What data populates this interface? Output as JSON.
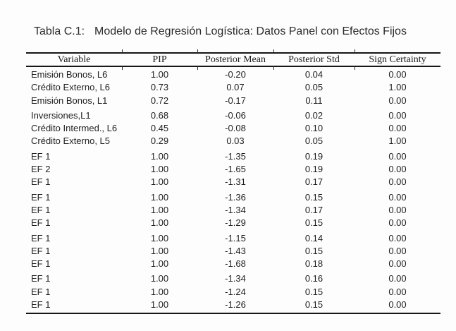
{
  "caption": {
    "label": "Tabla C.1:",
    "text": "Modelo de Regresión Logística: Datos Panel con Efectos Fijos"
  },
  "table": {
    "columns": [
      "Variable",
      "PIP",
      "Posterior Mean",
      "Posterior Std",
      "Sign Certainty"
    ],
    "group_size": 3,
    "rows": [
      [
        "Emisión Bonos, L6",
        "1.00",
        "-0.20",
        "0.04",
        "0.00"
      ],
      [
        "Crédito Externo, L6",
        "0.73",
        "0.07",
        "0.05",
        "1.00"
      ],
      [
        "Emisión Bonos, L1",
        "0.72",
        "-0.17",
        "0.11",
        "0.00"
      ],
      [
        "Inversiones,L1",
        "0.68",
        "-0.06",
        "0.02",
        "0.00"
      ],
      [
        "Crédito Intermed., L6",
        "0.45",
        "-0.08",
        "0.10",
        "0.00"
      ],
      [
        "Crédito Externo, L5",
        "0.29",
        "0.03",
        "0.05",
        "1.00"
      ],
      [
        "EF 1",
        "1.00",
        "-1.35",
        "0.19",
        "0.00"
      ],
      [
        "EF 2",
        "1.00",
        "-1.65",
        "0.19",
        "0.00"
      ],
      [
        "EF 1",
        "1.00",
        "-1.31",
        "0.17",
        "0.00"
      ],
      [
        "EF 1",
        "1.00",
        "-1.36",
        "0.15",
        "0.00"
      ],
      [
        "EF 1",
        "1.00",
        "-1.34",
        "0.17",
        "0.00"
      ],
      [
        "EF 1",
        "1.00",
        "-1.29",
        "0.15",
        "0.00"
      ],
      [
        "EF 1",
        "1.00",
        "-1.15",
        "0.14",
        "0.00"
      ],
      [
        "EF 1",
        "1.00",
        "-1.43",
        "0.15",
        "0.00"
      ],
      [
        "EF 1",
        "1.00",
        "-1.68",
        "0.18",
        "0.00"
      ],
      [
        "EF 1",
        "1.00",
        "-1.34",
        "0.16",
        "0.00"
      ],
      [
        "EF 1",
        "1.00",
        "-1.24",
        "0.15",
        "0.00"
      ],
      [
        "EF 1",
        "1.00",
        "-1.26",
        "0.15",
        "0.00"
      ]
    ]
  },
  "colors": {
    "text": "#1e1e1e",
    "rule": "#161616",
    "background": "#fdfdfd"
  }
}
